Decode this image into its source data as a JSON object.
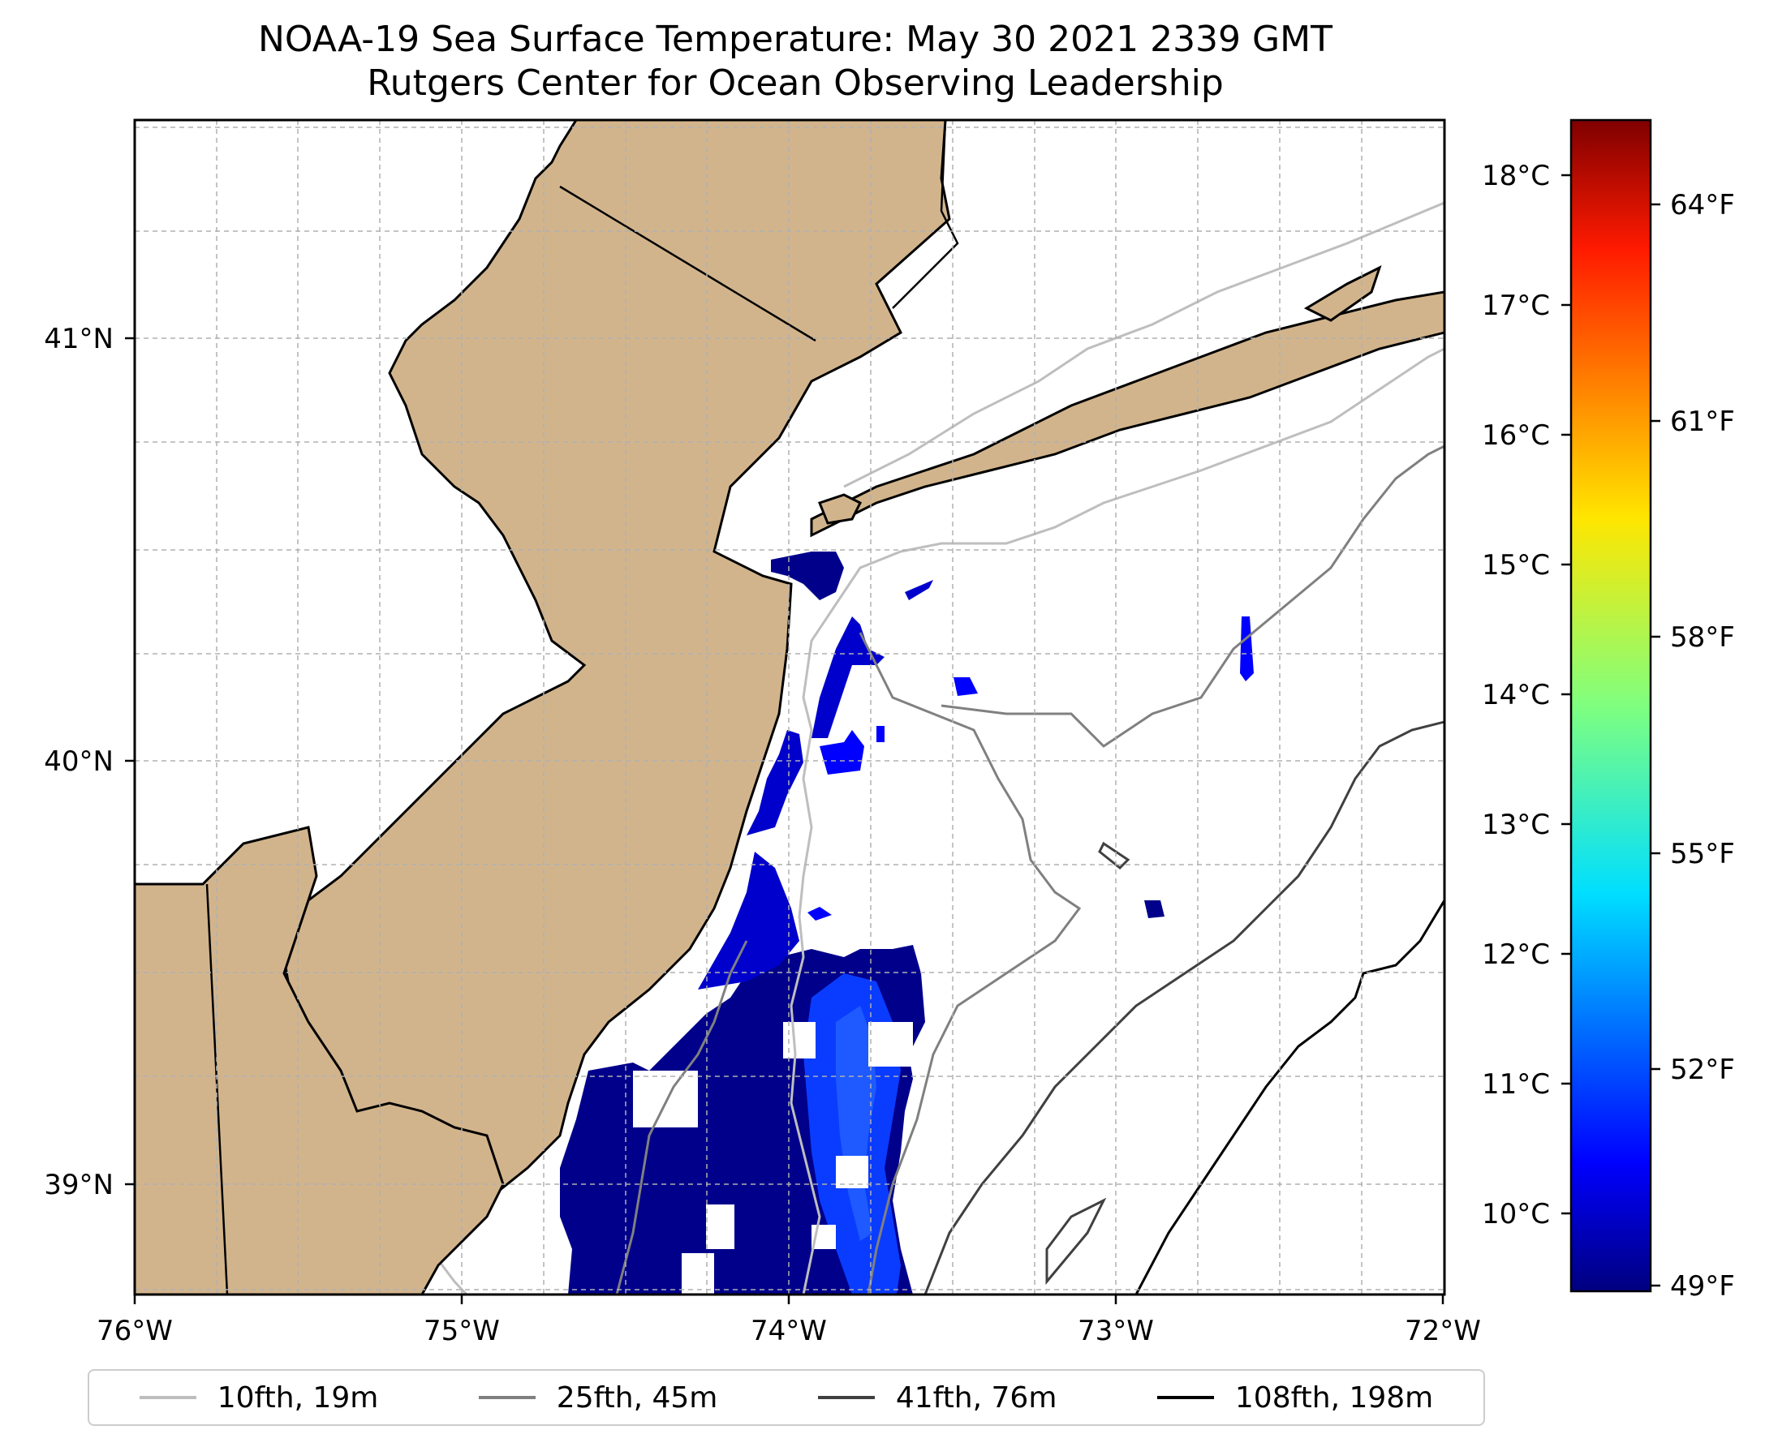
{
  "title": "NOAA-19 Sea Surface Temperature: May 30 2021 2339 GMT",
  "subtitle": "Rutgers Center for Ocean Observing Leadership",
  "map": {
    "lon_range": [
      -76,
      -72
    ],
    "lat_range": [
      38.74,
      41.52
    ],
    "x_ticks": [
      "76°W",
      "75°W",
      "74°W",
      "73°W",
      "72°W"
    ],
    "y_ticks": [
      "41°N",
      "40°N",
      "39°N"
    ],
    "gridlines": true,
    "land_color": "#d2b48c"
  },
  "colorbar": {
    "celsius_ticks": [
      "18°C",
      "17°C",
      "16°C",
      "15°C",
      "14°C",
      "13°C",
      "12°C",
      "11°C",
      "10°C"
    ],
    "fahrenheit_ticks": [
      "64°F",
      "61°F",
      "58°F",
      "55°F",
      "52°F",
      "49°F"
    ],
    "colormap": "jet",
    "range_c": [
      9.5,
      18.5
    ]
  },
  "legend": {
    "placement": "bottom",
    "items": [
      {
        "label": "10fth, 19m",
        "color": "#bebebe"
      },
      {
        "label": "25fth, 45m",
        "color": "#808080"
      },
      {
        "label": "41fth, 76m",
        "color": "#404040"
      },
      {
        "label": "108fth, 198m",
        "color": "#000000"
      }
    ]
  }
}
